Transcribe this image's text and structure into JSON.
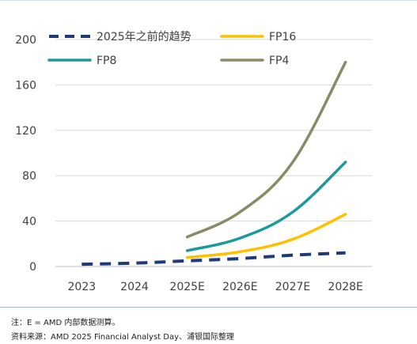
{
  "chart_data": {
    "type": "line",
    "categories": [
      "2023",
      "2024",
      "2025E",
      "2026E",
      "2027E",
      "2028E"
    ],
    "ylim": [
      0,
      200
    ],
    "yticks": [
      "0",
      "40",
      "80",
      "120",
      "160",
      "200"
    ],
    "grid": true,
    "legend_placement": "top",
    "series": [
      {
        "name": "2025年之前的趋势",
        "color": "#1f3a7a",
        "dashed": true,
        "x": [
          "2023",
          "2024",
          "2025E",
          "2026E",
          "2027E",
          "2028E"
        ],
        "values": [
          2,
          3,
          5,
          7,
          10,
          12
        ]
      },
      {
        "name": "FP16",
        "color": "#ffc000",
        "dashed": false,
        "x": [
          "2025E",
          "2026E",
          "2027E",
          "2028E"
        ],
        "values": [
          8,
          13,
          24,
          46
        ]
      },
      {
        "name": "FP8",
        "color": "#1a9a9a",
        "dashed": false,
        "x": [
          "2025E",
          "2026E",
          "2027E",
          "2028E"
        ],
        "values": [
          14,
          25,
          48,
          92
        ]
      },
      {
        "name": "FP4",
        "color": "#8a8a66",
        "dashed": false,
        "x": [
          "2025E",
          "2026E",
          "2027E",
          "2028E"
        ],
        "values": [
          26,
          48,
          92,
          180
        ]
      }
    ]
  },
  "footer": {
    "note": "注：E = AMD 内部数据测算。",
    "source": "资料来源：AMD 2025 Financial Analyst Day、浦银国际整理"
  }
}
